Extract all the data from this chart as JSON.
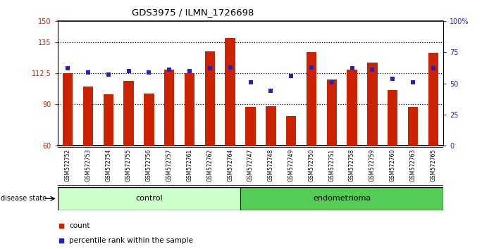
{
  "title": "GDS3975 / ILMN_1726698",
  "samples": [
    "GSM572752",
    "GSM572753",
    "GSM572754",
    "GSM572755",
    "GSM572756",
    "GSM572757",
    "GSM572761",
    "GSM572762",
    "GSM572764",
    "GSM572747",
    "GSM572748",
    "GSM572749",
    "GSM572750",
    "GSM572751",
    "GSM572758",
    "GSM572759",
    "GSM572760",
    "GSM572763",
    "GSM572765"
  ],
  "bar_values": [
    112.5,
    103.0,
    97.0,
    107.0,
    97.5,
    115.0,
    112.5,
    128.0,
    138.0,
    88.0,
    88.5,
    81.5,
    127.5,
    108.0,
    115.0,
    120.0,
    100.0,
    88.0,
    127.0
  ],
  "dot_values": [
    62,
    59,
    57,
    60,
    59,
    61,
    60,
    62,
    63,
    51,
    44,
    56,
    63,
    51,
    62,
    61,
    54,
    51,
    62
  ],
  "control_count": 9,
  "endometrioma_count": 10,
  "ylim_left": [
    60,
    150
  ],
  "ylim_right": [
    0,
    100
  ],
  "hlines": [
    90,
    112.5,
    135
  ],
  "bar_color": "#cc2200",
  "dot_color": "#2222bb",
  "control_bg": "#ccffcc",
  "endometrioma_bg": "#55cc55",
  "label_bg": "#cccccc",
  "left_axis_color": "#cc2200",
  "right_axis_color": "#2222bb",
  "disease_label": "disease state",
  "control_label": "control",
  "endometrioma_label": "endometrioma",
  "legend_count": "count",
  "legend_percentile": "percentile rank within the sample"
}
